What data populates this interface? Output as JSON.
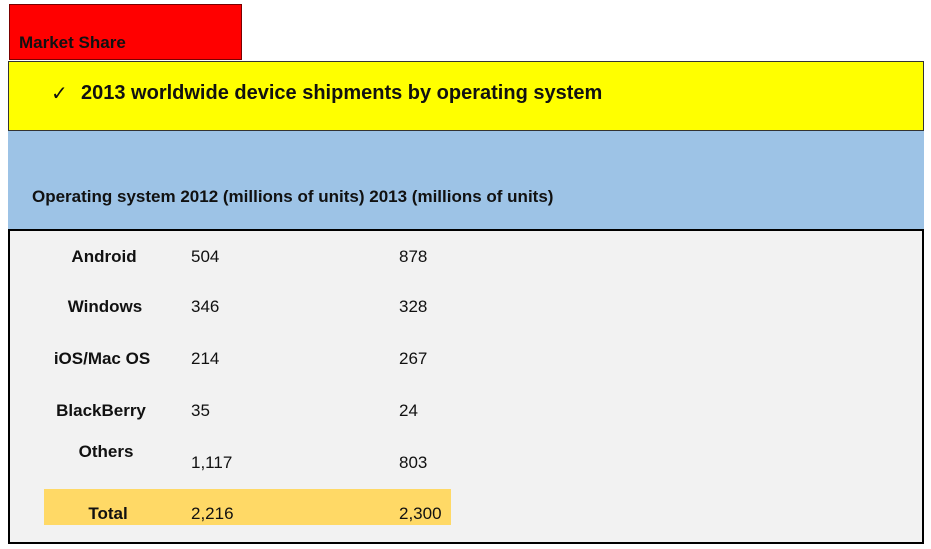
{
  "tag": {
    "label": "Market Share"
  },
  "subtitle": {
    "check": "✓",
    "text": "2013 worldwide device shipments by operating system"
  },
  "table": {
    "header": "Operating system 2012 (millions of units) 2013 (millions of units)",
    "rows": [
      {
        "name": "Android",
        "y2012": "504",
        "y2013": "878"
      },
      {
        "name": "Windows",
        "y2012": "346",
        "y2013": "328"
      },
      {
        "name": "iOS/Mac OS",
        "y2012": "214",
        "y2013": "267"
      },
      {
        "name": "BlackBerry",
        "y2012": "35",
        "y2013": "24"
      },
      {
        "name": "Others",
        "y2012": "1,117",
        "y2013": "803"
      }
    ],
    "total": {
      "name": "Total",
      "y2012": "2,216",
      "y2013": "2,300"
    }
  },
  "colors": {
    "tag_bg": "#ff0000",
    "subtitle_bg": "#ffff00",
    "header_bg": "#9dc3e6",
    "panel_bg": "#f2f2f2",
    "total_highlight": "#ffd966"
  }
}
